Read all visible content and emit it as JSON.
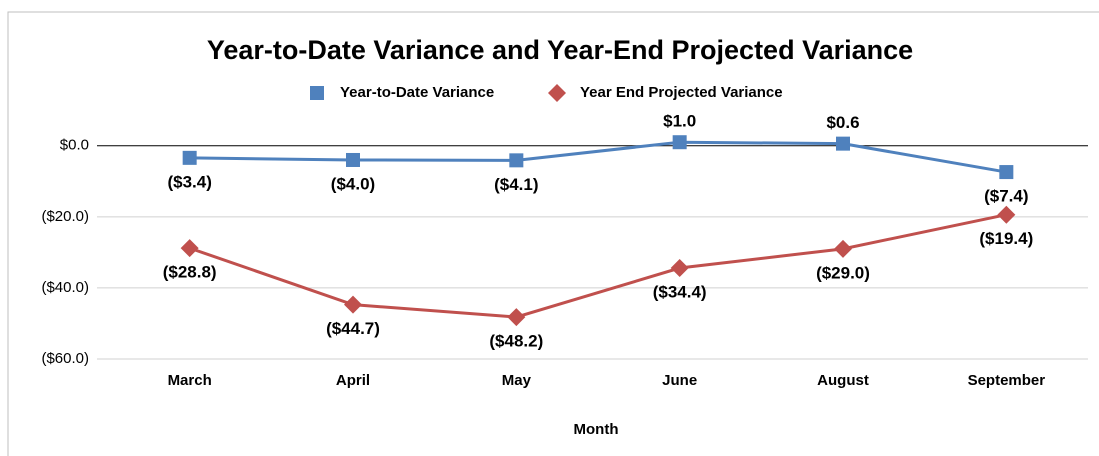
{
  "chart_data": {
    "type": "line",
    "title": "Year-to-Date Variance and Year-End Projected Variance",
    "x_label": "Month",
    "categories": [
      "March",
      "April",
      "May",
      "June",
      "August",
      "September"
    ],
    "series": [
      {
        "name": "Year-to-Date Variance",
        "color": "#4f81bd",
        "marker": "square",
        "values": [
          -3.4,
          -4.0,
          -4.1,
          1.0,
          0.6,
          -7.4
        ],
        "value_labels": [
          "($3.4)",
          "($4.0)",
          "($4.1)",
          "$1.0",
          "$0.6",
          "($7.4)"
        ]
      },
      {
        "name": "Year End Projected Variance",
        "color": "#c0504d",
        "marker": "diamond",
        "values": [
          -28.8,
          -44.7,
          -48.2,
          -34.4,
          -29.0,
          -19.4
        ],
        "value_labels": [
          "($28.8)",
          "($44.7)",
          "($48.2)",
          "($34.4)",
          "($29.0)",
          "($19.4)"
        ]
      }
    ],
    "ylim": [
      -60,
      5
    ],
    "yticks": [
      {
        "value": 0,
        "label": "$0.0"
      },
      {
        "value": -20,
        "label": "($20.0)"
      },
      {
        "value": -40,
        "label": "($40.0)"
      },
      {
        "value": -60,
        "label": "($60.0)"
      }
    ],
    "grid": true,
    "legend": "top"
  }
}
